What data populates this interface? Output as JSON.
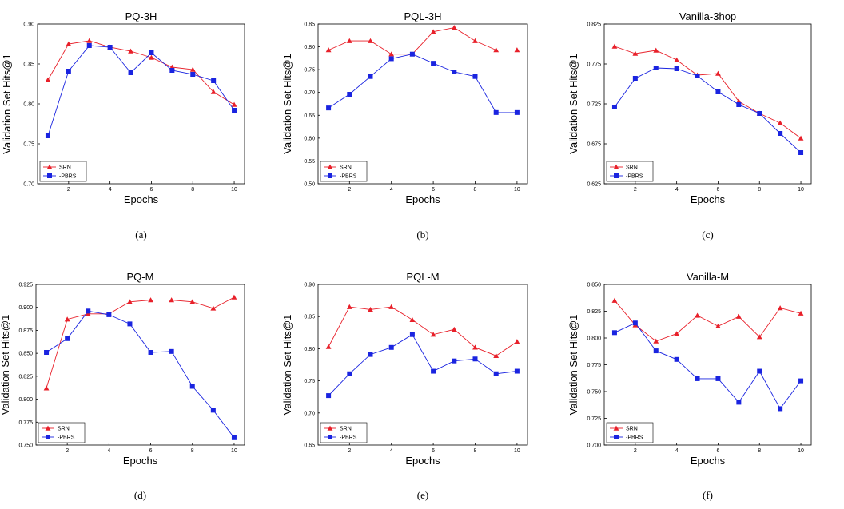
{
  "chart_data": [
    {
      "type": "line",
      "caption": "(a)",
      "title": "PQ-3H",
      "xlabel": "Epochs",
      "ylabel": "Validation Set Hits@1",
      "x": [
        1,
        2,
        3,
        4,
        5,
        6,
        7,
        8,
        9,
        10
      ],
      "xticks": [
        "2",
        "4",
        "6",
        "8",
        "10"
      ],
      "xlim": [
        0.5,
        10.5
      ],
      "ylim": [
        0.7,
        0.9
      ],
      "yticks": [
        "0.70",
        "0.75",
        "0.80",
        "0.85",
        "0.90"
      ],
      "legend_position": "bottom-left",
      "series": [
        {
          "name": "SRN",
          "color": "#e8202a",
          "marker": "triangle",
          "values": [
            0.83,
            0.875,
            0.879,
            0.871,
            0.866,
            0.858,
            0.846,
            0.843,
            0.815,
            0.799
          ]
        },
        {
          "name": "-PBRS",
          "color": "#1a24e0",
          "marker": "square",
          "values": [
            0.76,
            0.841,
            0.873,
            0.871,
            0.839,
            0.864,
            0.842,
            0.837,
            0.829,
            0.792
          ]
        }
      ]
    },
    {
      "type": "line",
      "caption": "(b)",
      "title": "PQL-3H",
      "xlabel": "Epochs",
      "ylabel": "Validation Set Hits@1",
      "x": [
        1,
        2,
        3,
        4,
        5,
        6,
        7,
        8,
        9,
        10
      ],
      "xticks": [
        "2",
        "4",
        "6",
        "8",
        "10"
      ],
      "xlim": [
        0.5,
        10.5
      ],
      "ylim": [
        0.5,
        0.85
      ],
      "yticks": [
        "0.50",
        "0.55",
        "0.60",
        "0.65",
        "0.70",
        "0.75",
        "0.80",
        "0.85"
      ],
      "legend_position": "bottom-left",
      "series": [
        {
          "name": "SRN",
          "color": "#e8202a",
          "marker": "triangle",
          "values": [
            0.793,
            0.813,
            0.813,
            0.784,
            0.784,
            0.833,
            0.842,
            0.813,
            0.793,
            0.793
          ]
        },
        {
          "name": "-PBRS",
          "color": "#1a24e0",
          "marker": "square",
          "values": [
            0.666,
            0.696,
            0.735,
            0.774,
            0.784,
            0.764,
            0.745,
            0.735,
            0.656,
            0.656
          ]
        }
      ]
    },
    {
      "type": "line",
      "caption": "(c)",
      "title": "Vanilla-3hop",
      "xlabel": "Epochs",
      "ylabel": "Validation Set Hits@1",
      "x": [
        1,
        2,
        3,
        4,
        5,
        6,
        7,
        8,
        9,
        10
      ],
      "xticks": [
        "2",
        "4",
        "6",
        "8",
        "10"
      ],
      "xlim": [
        0.5,
        10.5
      ],
      "ylim": [
        0.625,
        0.825
      ],
      "yticks": [
        "0.625",
        "0.675",
        "0.725",
        "0.775",
        "0.825"
      ],
      "legend_position": "bottom-left",
      "series": [
        {
          "name": "SRN",
          "color": "#e8202a",
          "marker": "triangle",
          "values": [
            0.797,
            0.788,
            0.792,
            0.78,
            0.761,
            0.763,
            0.728,
            0.713,
            0.701,
            0.682
          ]
        },
        {
          "name": "-PBRS",
          "color": "#1a24e0",
          "marker": "square",
          "values": [
            0.721,
            0.757,
            0.77,
            0.769,
            0.76,
            0.74,
            0.724,
            0.713,
            0.688,
            0.664
          ]
        }
      ]
    },
    {
      "type": "line",
      "caption": "(d)",
      "title": "PQ-M",
      "xlabel": "Epochs",
      "ylabel": "Validation Set Hits@1",
      "x": [
        1,
        2,
        3,
        4,
        5,
        6,
        7,
        8,
        9,
        10
      ],
      "xticks": [
        "2",
        "4",
        "6",
        "8",
        "10"
      ],
      "xlim": [
        0.5,
        10.5
      ],
      "ylim": [
        0.75,
        0.925
      ],
      "yticks": [
        "0.750",
        "0.775",
        "0.800",
        "0.825",
        "0.850",
        "0.875",
        "0.900",
        "0.925"
      ],
      "legend_position": "bottom-left",
      "series": [
        {
          "name": "SRN",
          "color": "#e8202a",
          "marker": "triangle",
          "values": [
            0.812,
            0.887,
            0.893,
            0.893,
            0.906,
            0.908,
            0.908,
            0.906,
            0.899,
            0.911
          ]
        },
        {
          "name": "-PBRS",
          "color": "#1a24e0",
          "marker": "square",
          "values": [
            0.851,
            0.866,
            0.896,
            0.892,
            0.882,
            0.851,
            0.852,
            0.814,
            0.788,
            0.758
          ]
        }
      ]
    },
    {
      "type": "line",
      "caption": "(e)",
      "title": "PQL-M",
      "xlabel": "Epochs",
      "ylabel": "Validation Set Hits@1",
      "x": [
        1,
        2,
        3,
        4,
        5,
        6,
        7,
        8,
        9,
        10
      ],
      "xticks": [
        "2",
        "4",
        "6",
        "8",
        "10"
      ],
      "xlim": [
        0.5,
        10.5
      ],
      "ylim": [
        0.65,
        0.9
      ],
      "yticks": [
        "0.65",
        "0.70",
        "0.75",
        "0.80",
        "0.85",
        "0.90"
      ],
      "legend_position": "bottom-left",
      "series": [
        {
          "name": "SRN",
          "color": "#e8202a",
          "marker": "triangle",
          "values": [
            0.803,
            0.865,
            0.861,
            0.865,
            0.845,
            0.822,
            0.83,
            0.802,
            0.789,
            0.811
          ]
        },
        {
          "name": "-PBRS",
          "color": "#1a24e0",
          "marker": "square",
          "values": [
            0.727,
            0.761,
            0.791,
            0.802,
            0.822,
            0.765,
            0.781,
            0.784,
            0.761,
            0.765
          ]
        }
      ]
    },
    {
      "type": "line",
      "caption": "(f)",
      "title": "Vanilla-M",
      "xlabel": "Epochs",
      "ylabel": "Validation Set Hits@1",
      "x": [
        1,
        2,
        3,
        4,
        5,
        6,
        7,
        8,
        9,
        10
      ],
      "xticks": [
        "2",
        "4",
        "6",
        "8",
        "10"
      ],
      "xlim": [
        0.5,
        10.5
      ],
      "ylim": [
        0.7,
        0.85
      ],
      "yticks": [
        "0.700",
        "0.725",
        "0.750",
        "0.775",
        "0.800",
        "0.825",
        "0.850"
      ],
      "legend_position": "bottom-left",
      "series": [
        {
          "name": "SRN",
          "color": "#e8202a",
          "marker": "triangle",
          "values": [
            0.835,
            0.812,
            0.797,
            0.804,
            0.821,
            0.811,
            0.82,
            0.801,
            0.828,
            0.823
          ]
        },
        {
          "name": "-PBRS",
          "color": "#1a24e0",
          "marker": "square",
          "values": [
            0.805,
            0.814,
            0.788,
            0.78,
            0.762,
            0.762,
            0.74,
            0.769,
            0.734,
            0.76
          ]
        }
      ]
    }
  ]
}
